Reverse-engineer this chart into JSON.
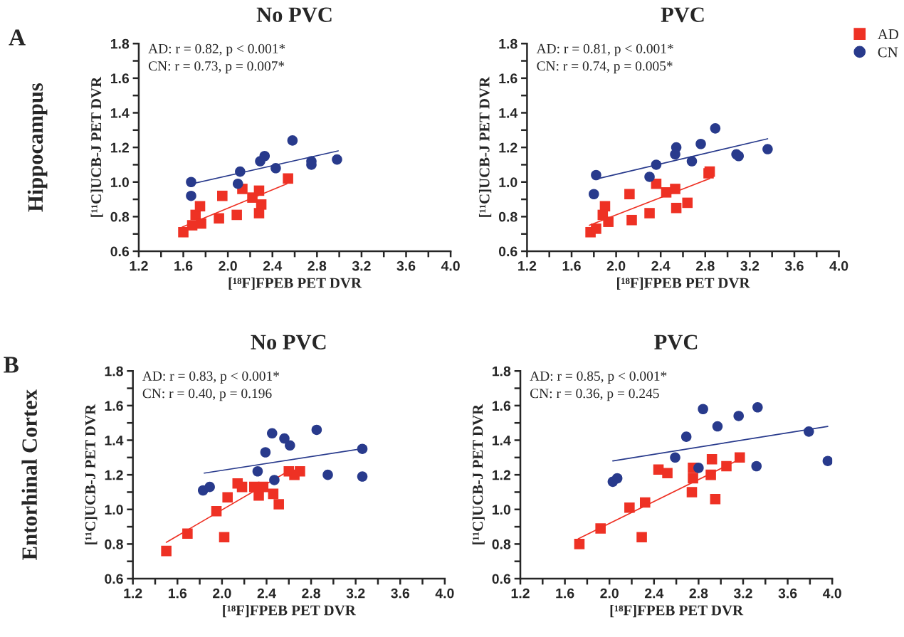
{
  "chart_data": [
    {
      "type": "scatter",
      "title": "No PVC",
      "xlabel": "[¹⁸F]FPEB PET DVR",
      "ylabel": "[¹¹C]UCB-J PET DVR",
      "annotations": [
        "A",
        "Hippocampus",
        "AD: r = 0.82, p < 0.001*",
        "CN: r = 0.73, p = 0.007*"
      ],
      "xlim": [
        1.2,
        4.0
      ],
      "ylim": [
        0.6,
        1.8
      ],
      "xticks": [
        1.2,
        {
          "value": 1.4,
          "label": null
        },
        1.6,
        {
          "value": 1.8,
          "label": null
        },
        {
          "value": 2,
          "label": "2.0"
        },
        {
          "value": 2.2,
          "label": null
        },
        2.4,
        {
          "value": 2.6,
          "label": null
        },
        2.8,
        {
          "value": 3.0,
          "label": null
        },
        3.2,
        {
          "value": 3.4,
          "label": null
        },
        3.6,
        {
          "value": 3.8,
          "label": null
        },
        {
          "value": 4,
          "label": "4.0"
        }
      ],
      "yticks": [
        0.6,
        {
          "value": 0.7,
          "label": null
        },
        0.8,
        {
          "value": 0.9,
          "label": null
        },
        {
          "value": 1,
          "label": "1.0"
        },
        {
          "value": 1.1,
          "label": null
        },
        1.2,
        {
          "value": 1.3,
          "label": null
        },
        1.4,
        {
          "value": 1.5,
          "label": null
        },
        1.6,
        {
          "value": 1.7,
          "label": null
        },
        1.8
      ],
      "grid": false,
      "series": [
        {
          "marker": "square",
          "color": "#ee3124",
          "x": [
            1.6,
            1.68,
            1.71,
            1.75,
            1.76,
            1.92,
            1.95,
            2.08,
            2.13,
            2.22,
            2.28,
            2.3,
            2.28,
            2.54
          ],
          "values": [
            0.71,
            0.75,
            0.81,
            0.86,
            0.76,
            0.79,
            0.92,
            0.81,
            0.96,
            0.91,
            0.95,
            0.87,
            0.82,
            1.02
          ]
        },
        {
          "marker": "circle",
          "color": "#283a8c",
          "x": [
            1.67,
            1.67,
            2.11,
            2.09,
            2.29,
            2.33,
            2.43,
            2.58,
            2.75,
            2.75,
            2.98
          ],
          "values": [
            1.0,
            0.92,
            1.06,
            0.99,
            1.12,
            1.15,
            1.08,
            1.24,
            1.12,
            1.1,
            1.13
          ]
        },
        {
          "type": "line",
          "line_style": "solid",
          "marker": "none",
          "color": "#ee3124",
          "x": [
            1.59,
            2.53
          ],
          "values": [
            0.74,
            0.99
          ]
        },
        {
          "type": "line",
          "line_style": "solid",
          "marker": "none",
          "color": "#283a8c",
          "x": [
            1.68,
            2.99
          ],
          "values": [
            0.99,
            1.18
          ]
        }
      ]
    },
    {
      "type": "scatter",
      "title": "PVC",
      "xlabel": "[¹⁸F]FPEB PET DVR",
      "ylabel": "[¹¹C]UCB-J PET DVR",
      "annotations": [
        "AD: r = 0.81, p < 0.001*",
        "CN: r = 0.74, p = 0.005*"
      ],
      "xlim": [
        1.2,
        4.0
      ],
      "ylim": [
        0.6,
        1.8
      ],
      "xticks": [
        1.2,
        {
          "value": 1.4,
          "label": null
        },
        1.6,
        {
          "value": 1.8,
          "label": null
        },
        {
          "value": 2,
          "label": "2.0"
        },
        {
          "value": 2.2,
          "label": null
        },
        2.4,
        {
          "value": 2.6,
          "label": null
        },
        2.8,
        {
          "value": 3.0,
          "label": null
        },
        3.2,
        {
          "value": 3.4,
          "label": null
        },
        3.6,
        {
          "value": 3.8,
          "label": null
        },
        {
          "value": 4,
          "label": "4.0"
        }
      ],
      "yticks": [
        0.6,
        {
          "value": 0.7,
          "label": null
        },
        0.8,
        {
          "value": 0.9,
          "label": null
        },
        {
          "value": 1,
          "label": "1.0"
        },
        {
          "value": 1.1,
          "label": null
        },
        1.2,
        {
          "value": 1.3,
          "label": null
        },
        1.4,
        {
          "value": 1.5,
          "label": null
        },
        1.6,
        {
          "value": 1.7,
          "label": null
        },
        1.8
      ],
      "grid": false,
      "legend": "top right",
      "series": [
        {
          "name": "AD",
          "marker": "square",
          "color": "#ee3124",
          "x": [
            1.77,
            1.82,
            1.9,
            1.88,
            1.93,
            2.12,
            2.14,
            2.3,
            2.36,
            2.45,
            2.53,
            2.54,
            2.64,
            2.83,
            2.84
          ],
          "values": [
            0.71,
            0.73,
            0.86,
            0.81,
            0.77,
            0.93,
            0.78,
            0.82,
            0.99,
            0.94,
            0.96,
            0.85,
            0.88,
            1.05,
            1.06
          ]
        },
        {
          "name": "CN",
          "marker": "circle",
          "color": "#283a8c",
          "x": [
            1.82,
            1.8,
            2.36,
            2.3,
            2.54,
            2.53,
            2.68,
            2.76,
            2.89,
            3.08,
            3.1,
            3.36
          ],
          "values": [
            1.04,
            0.93,
            1.1,
            1.03,
            1.2,
            1.16,
            1.12,
            1.22,
            1.31,
            1.16,
            1.15,
            1.19
          ]
        },
        {
          "type": "line",
          "line_style": "solid",
          "marker": "none",
          "color": "#ee3124",
          "x": [
            1.76,
            2.84
          ],
          "values": [
            0.75,
            1.02
          ]
        },
        {
          "type": "line",
          "line_style": "solid",
          "marker": "none",
          "color": "#283a8c",
          "x": [
            1.84,
            3.36
          ],
          "values": [
            1.02,
            1.25
          ]
        }
      ]
    },
    {
      "type": "scatter",
      "title": "No PVC",
      "xlabel": "[¹⁸F]FPEB PET DVR",
      "ylabel": "[¹¹C]UCB-J PET DVR",
      "annotations": [
        "B",
        "Entorhinal Cortex",
        "AD: r = 0.83, p < 0.001*",
        "CN: r = 0.40, p = 0.196"
      ],
      "xlim": [
        1.2,
        4.0
      ],
      "ylim": [
        0.6,
        1.8
      ],
      "xticks": [
        1.2,
        {
          "value": 1.4,
          "label": null
        },
        1.6,
        {
          "value": 1.8,
          "label": null
        },
        {
          "value": 2,
          "label": "2.0"
        },
        {
          "value": 2.2,
          "label": null
        },
        2.4,
        {
          "value": 2.6,
          "label": null
        },
        2.8,
        {
          "value": 3.0,
          "label": null
        },
        3.2,
        {
          "value": 3.4,
          "label": null
        },
        3.6,
        {
          "value": 3.8,
          "label": null
        },
        {
          "value": 4,
          "label": "4.0"
        }
      ],
      "yticks": [
        0.6,
        {
          "value": 0.7,
          "label": null
        },
        0.8,
        {
          "value": 0.9,
          "label": null
        },
        {
          "value": 1,
          "label": "1.0"
        },
        {
          "value": 1.1,
          "label": null
        },
        1.2,
        {
          "value": 1.3,
          "label": null
        },
        1.4,
        {
          "value": 1.5,
          "label": null
        },
        1.6,
        {
          "value": 1.7,
          "label": null
        },
        1.8
      ],
      "grid": false,
      "series": [
        {
          "marker": "square",
          "color": "#ee3124",
          "x": [
            1.5,
            1.69,
            1.95,
            2.02,
            2.05,
            2.14,
            2.18,
            2.29,
            2.37,
            2.33,
            2.46,
            2.51,
            2.6,
            2.65,
            2.7
          ],
          "values": [
            0.76,
            0.86,
            0.99,
            0.84,
            1.07,
            1.15,
            1.13,
            1.13,
            1.13,
            1.08,
            1.09,
            1.03,
            1.22,
            1.2,
            1.22
          ]
        },
        {
          "marker": "circle",
          "color": "#283a8c",
          "x": [
            1.83,
            1.89,
            2.32,
            2.39,
            2.45,
            2.47,
            2.56,
            2.61,
            2.85,
            2.95,
            3.26,
            3.26
          ],
          "values": [
            1.11,
            1.13,
            1.22,
            1.33,
            1.44,
            1.17,
            1.41,
            1.37,
            1.46,
            1.2,
            1.35,
            1.19
          ]
        },
        {
          "type": "line",
          "line_style": "solid",
          "marker": "none",
          "color": "#ee3124",
          "x": [
            1.5,
            2.62
          ],
          "values": [
            0.81,
            1.23
          ]
        },
        {
          "type": "line",
          "line_style": "solid",
          "marker": "none",
          "color": "#283a8c",
          "x": [
            1.84,
            3.25
          ],
          "values": [
            1.21,
            1.35
          ]
        }
      ]
    },
    {
      "type": "scatter",
      "title": "PVC",
      "xlabel": "[¹⁸F]FPEB PET DVR",
      "ylabel": "[¹¹C]UCB-J PET DVR",
      "annotations": [
        "AD: r = 0.85, p < 0.001*",
        "CN: r = 0.36, p = 0.245"
      ],
      "xlim": [
        1.2,
        4.0
      ],
      "ylim": [
        0.6,
        1.8
      ],
      "xticks": [
        1.2,
        {
          "value": 1.4,
          "label": null
        },
        1.6,
        {
          "value": 1.8,
          "label": null
        },
        {
          "value": 2,
          "label": "2.0"
        },
        {
          "value": 2.2,
          "label": null
        },
        2.4,
        {
          "value": 2.6,
          "label": null
        },
        2.8,
        {
          "value": 3.0,
          "label": null
        },
        3.2,
        {
          "value": 3.4,
          "label": null
        },
        3.6,
        {
          "value": 3.8,
          "label": null
        },
        {
          "value": 4,
          "label": "4.0"
        }
      ],
      "yticks": [
        0.6,
        {
          "value": 0.7,
          "label": null
        },
        0.8,
        {
          "value": 0.9,
          "label": null
        },
        {
          "value": 1,
          "label": "1.0"
        },
        {
          "value": 1.1,
          "label": null
        },
        1.2,
        {
          "value": 1.3,
          "label": null
        },
        1.4,
        {
          "value": 1.5,
          "label": null
        },
        1.6,
        {
          "value": 1.7,
          "label": null
        },
        1.8
      ],
      "grid": false,
      "series": [
        {
          "marker": "square",
          "color": "#ee3124",
          "x": [
            1.73,
            1.92,
            2.18,
            2.29,
            2.32,
            2.44,
            2.52,
            2.74,
            2.75,
            2.75,
            2.92,
            2.91,
            2.95,
            3.05,
            3.17
          ],
          "values": [
            0.8,
            0.89,
            1.01,
            0.84,
            1.04,
            1.23,
            1.21,
            1.1,
            1.18,
            1.24,
            1.29,
            1.2,
            1.06,
            1.25,
            1.3
          ]
        },
        {
          "marker": "circle",
          "color": "#283a8c",
          "x": [
            2.03,
            2.07,
            2.59,
            2.69,
            2.8,
            2.84,
            2.97,
            3.16,
            3.32,
            3.33,
            3.79,
            3.96
          ],
          "values": [
            1.16,
            1.18,
            1.3,
            1.42,
            1.24,
            1.58,
            1.48,
            1.54,
            1.25,
            1.59,
            1.45,
            1.28
          ]
        },
        {
          "type": "line",
          "line_style": "solid",
          "marker": "none",
          "color": "#ee3124",
          "x": [
            1.72,
            3.17
          ],
          "values": [
            0.83,
            1.29
          ]
        },
        {
          "type": "line",
          "line_style": "solid",
          "marker": "none",
          "color": "#283a8c",
          "x": [
            2.03,
            3.96
          ],
          "values": [
            1.28,
            1.48
          ]
        }
      ]
    }
  ]
}
